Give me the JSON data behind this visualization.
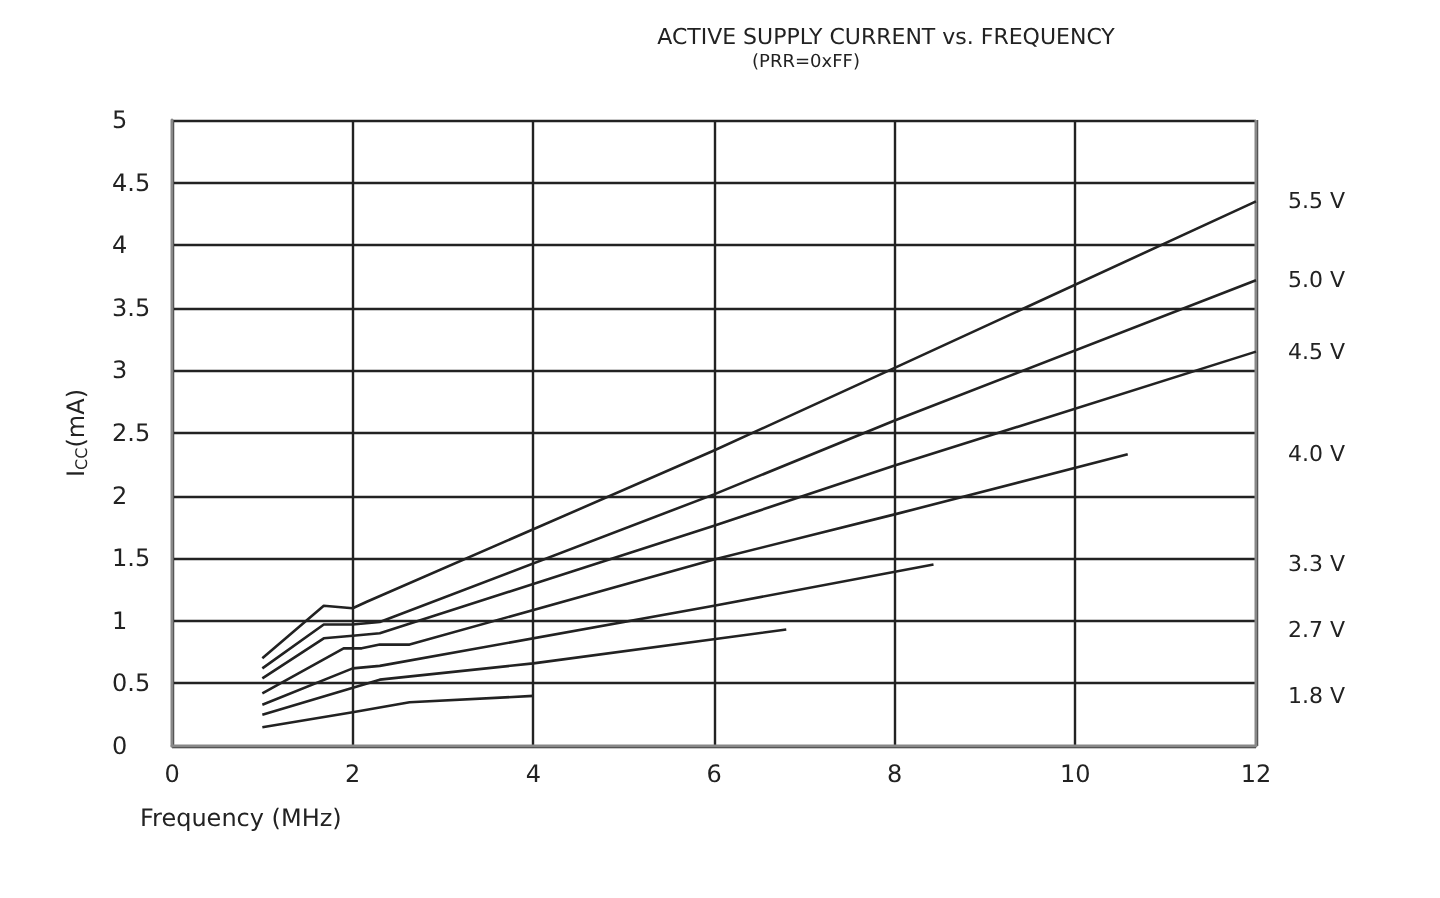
{
  "chart_data": {
    "type": "line",
    "title": "ACTIVE SUPPLY CURRENT vs. FREQUENCY",
    "subtitle": "(PRR=0xFF)",
    "xlabel": "Frequency (MHz)",
    "ylabel": "I$_{CC}$(mA)",
    "xlim": [
      0,
      12
    ],
    "xticks": [
      0,
      2,
      4,
      6,
      8,
      10,
      12
    ],
    "ylim": [
      0,
      5
    ],
    "yticks": [
      0,
      0.5,
      1,
      1.5,
      2,
      2.5,
      3,
      3.5,
      4,
      4.5,
      5
    ],
    "grid": true,
    "legend": false,
    "marker": "none",
    "line_style": "solid",
    "series": [
      {
        "name": "5.5 V",
        "color": "#222222",
        "x": [
          1.0,
          1.68,
          2.0,
          2.15,
          6,
          8,
          12
        ],
        "values": [
          0.7,
          1.12,
          1.1,
          1.15,
          2.36,
          3.02,
          4.35
        ]
      },
      {
        "name": "5.0 V",
        "color": "#222222",
        "x": [
          1.0,
          1.68,
          2.0,
          2.3,
          6,
          8,
          12
        ],
        "values": [
          0.62,
          0.97,
          0.97,
          0.99,
          2.01,
          2.6,
          3.72
        ]
      },
      {
        "name": "4.5 V",
        "color": "#222222",
        "x": [
          1.0,
          1.68,
          2.0,
          2.3,
          6,
          8,
          12
        ],
        "values": [
          0.54,
          0.86,
          0.88,
          0.9,
          1.76,
          2.24,
          3.15
        ]
      },
      {
        "name": "4.0 V",
        "color": "#222222",
        "x": [
          1.0,
          1.9,
          2.1,
          2.3,
          2.63,
          6,
          8,
          10.58
        ],
        "values": [
          0.42,
          0.78,
          0.78,
          0.81,
          0.81,
          1.49,
          1.85,
          2.33
        ]
      },
      {
        "name": "3.3 V",
        "color": "#222222",
        "x": [
          1.0,
          2.0,
          2.3,
          6,
          8.43
        ],
        "values": [
          0.33,
          0.62,
          0.64,
          1.12,
          1.45
        ]
      },
      {
        "name": "2.7 V",
        "color": "#222222",
        "x": [
          1.0,
          2.3,
          4.0,
          6.8
        ],
        "values": [
          0.25,
          0.53,
          0.66,
          0.93
        ]
      },
      {
        "name": "1.8 V",
        "color": "#222222",
        "x": [
          1.0,
          2.0,
          2.63,
          4.0
        ],
        "values": [
          0.15,
          0.27,
          0.35,
          0.4
        ]
      }
    ]
  }
}
